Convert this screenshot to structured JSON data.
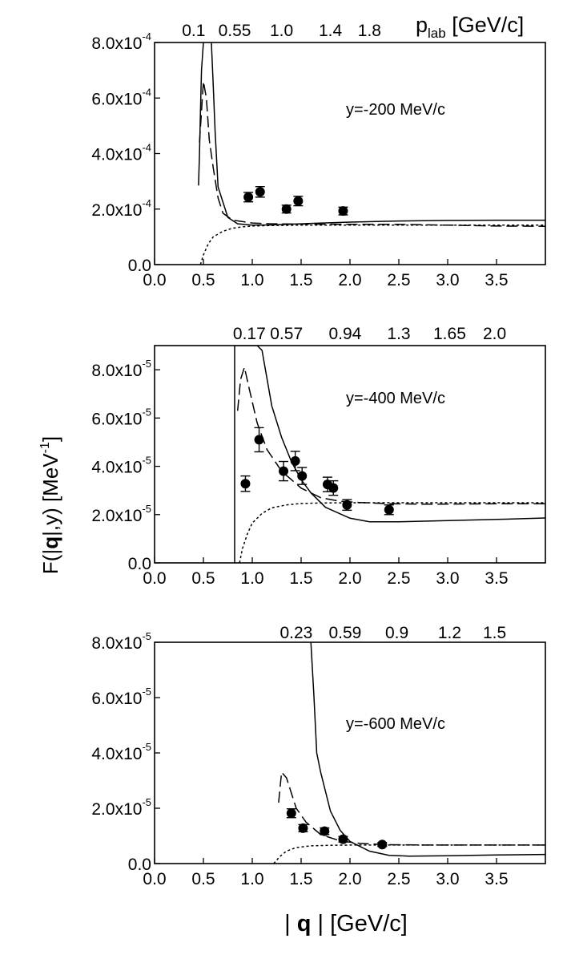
{
  "figure": {
    "ylabel_main": "F(|",
    "ylabel_bold": "q",
    "ylabel_rest": "|,y) [MeV",
    "ylabel_sup": "-1",
    "ylabel_close": "]",
    "xlabel_open": "| ",
    "xlabel_bold": "q",
    "xlabel_rest": " | [GeV/c]",
    "plab_label": "p",
    "plab_sub": "lab",
    "plab_units": " [GeV/c]"
  },
  "chart_data": [
    {
      "type": "line",
      "annotation": "y=-200 MeV/c",
      "xlim": [
        0.0,
        4.0
      ],
      "ylim": [
        0,
        0.0008
      ],
      "yexp": -4,
      "yticks": [
        0,
        0.0002,
        0.0004,
        0.0006,
        0.0008
      ],
      "ytick_labels": [
        {
          "m": "0.0",
          "e": ""
        },
        {
          "m": "2.0x10",
          "e": "-4"
        },
        {
          "m": "4.0x10",
          "e": "-4"
        },
        {
          "m": "6.0x10",
          "e": "-4"
        },
        {
          "m": "8.0x10",
          "e": "-4"
        }
      ],
      "xticks": [
        0.0,
        0.5,
        1.0,
        1.5,
        2.0,
        2.5,
        3.0,
        3.5
      ],
      "xtick_labels": [
        "0.0",
        "0.5",
        "1.0",
        "1.5",
        "2.0",
        "2.5",
        "3.0",
        "3.5"
      ],
      "top_ticks": [
        {
          "x": 0.4,
          "label": "0.1"
        },
        {
          "x": 0.82,
          "label": "0.55"
        },
        {
          "x": 1.3,
          "label": "1.0"
        },
        {
          "x": 1.8,
          "label": "1.4"
        },
        {
          "x": 2.2,
          "label": "1.8"
        }
      ],
      "points": [
        {
          "x": 0.96,
          "y": 0.000243,
          "err": 1.7e-05
        },
        {
          "x": 1.08,
          "y": 0.000262,
          "err": 1.9e-05
        },
        {
          "x": 1.35,
          "y": 0.0002,
          "err": 1.4e-05
        },
        {
          "x": 1.47,
          "y": 0.000229,
          "err": 1.7e-05
        },
        {
          "x": 1.93,
          "y": 0.000193,
          "err": 1.4e-05
        }
      ],
      "series": [
        {
          "name": "solid",
          "style": "solid",
          "x": [
            0.45,
            0.46,
            0.47,
            0.48,
            0.5,
            0.52,
            0.55,
            0.58,
            0.6,
            0.62,
            0.65,
            0.75,
            0.85,
            1.0,
            1.2,
            1.5,
            2.0,
            2.5,
            3.0,
            3.5,
            4.0
          ],
          "y": [
            0.000285,
            0.0004,
            0.00055,
            0.0007,
            0.0008,
            0.00082,
            0.00082,
            0.00081,
            0.00065,
            0.00048,
            0.00028,
            0.00017,
            0.000147,
            0.000142,
            0.000143,
            0.000147,
            0.000153,
            0.000157,
            0.000159,
            0.00016,
            0.00016
          ]
        },
        {
          "name": "dashed",
          "style": "dashed",
          "x": [
            0.46,
            0.5,
            0.53,
            0.56,
            0.6,
            0.65,
            0.7,
            0.8,
            1.0,
            1.2,
            1.5,
            2.0,
            2.5,
            3.0,
            3.5,
            4.0
          ],
          "y": [
            0.00044,
            0.00066,
            0.0006,
            0.00045,
            0.00035,
            0.00024,
            0.000185,
            0.00016,
            0.00015,
            0.000147,
            0.000146,
            0.000145,
            0.000145,
            0.000142,
            0.000139,
            0.000138
          ]
        },
        {
          "name": "dotted",
          "style": "dotted",
          "x": [
            0.47,
            0.5,
            0.55,
            0.6,
            0.7,
            0.8,
            0.9,
            1.0,
            1.2,
            1.5,
            2.0,
            2.5,
            3.0,
            3.5,
            4.0
          ],
          "y": [
            0.0,
            3.5e-05,
            7.5e-05,
            0.0001,
            0.00012,
            0.000131,
            0.000136,
            0.000139,
            0.000141,
            0.000142,
            0.000142,
            0.000142,
            0.000142,
            0.000142,
            0.000142
          ]
        }
      ]
    },
    {
      "type": "line",
      "annotation": "y=-400 MeV/c",
      "xlim": [
        0.0,
        4.0
      ],
      "ylim": [
        0,
        9e-05
      ],
      "yexp": -5,
      "yticks": [
        0,
        2e-05,
        4e-05,
        6e-05,
        8e-05
      ],
      "ytick_labels": [
        {
          "m": "0.0",
          "e": ""
        },
        {
          "m": "2.0x10",
          "e": "-5"
        },
        {
          "m": "4.0x10",
          "e": "-5"
        },
        {
          "m": "6.0x10",
          "e": "-5"
        },
        {
          "m": "8.0x10",
          "e": "-5"
        }
      ],
      "xticks": [
        0.0,
        0.5,
        1.0,
        1.5,
        2.0,
        2.5,
        3.0,
        3.5
      ],
      "xtick_labels": [
        "0.0",
        "0.5",
        "1.0",
        "1.5",
        "2.0",
        "2.5",
        "3.0",
        "3.5"
      ],
      "top_ticks": [
        {
          "x": 0.97,
          "label": "0.17"
        },
        {
          "x": 1.35,
          "label": "0.57"
        },
        {
          "x": 1.95,
          "label": "0.94"
        },
        {
          "x": 2.5,
          "label": "1.3"
        },
        {
          "x": 3.02,
          "label": "1.65"
        },
        {
          "x": 3.48,
          "label": "2.0"
        }
      ],
      "points": [
        {
          "x": 0.93,
          "y": 3.28e-05,
          "err": 3.2e-06
        },
        {
          "x": 1.07,
          "y": 5.1e-05,
          "err": 5e-06
        },
        {
          "x": 1.32,
          "y": 3.8e-05,
          "err": 4e-06
        },
        {
          "x": 1.44,
          "y": 4.22e-05,
          "err": 4e-06
        },
        {
          "x": 1.51,
          "y": 3.6e-05,
          "err": 3.5e-06
        },
        {
          "x": 1.77,
          "y": 3.25e-05,
          "err": 3e-06
        },
        {
          "x": 1.83,
          "y": 3.1e-05,
          "err": 3e-06
        },
        {
          "x": 1.97,
          "y": 2.4e-05,
          "err": 2.2e-06
        },
        {
          "x": 2.4,
          "y": 2.2e-05,
          "err": 2e-06
        }
      ],
      "series": [
        {
          "name": "solid",
          "style": "solid",
          "x": [
            0.82,
            0.82,
            0.83,
            0.85,
            0.9,
            1.0,
            1.05,
            1.1,
            1.2,
            1.3,
            1.4,
            1.5,
            1.6,
            1.75,
            2.0,
            2.2,
            2.5,
            3.0,
            3.5,
            4.0
          ],
          "y": [
            0.0,
            9e-05,
            9e-05,
            9e-05,
            9e-05,
            9e-05,
            9e-05,
            8.8e-05,
            6.5e-05,
            5.2e-05,
            4.2e-05,
            3.45e-05,
            2.9e-05,
            2.3e-05,
            1.85e-05,
            1.7e-05,
            1.7e-05,
            1.75e-05,
            1.8e-05,
            1.86e-05
          ]
        },
        {
          "name": "dashed",
          "style": "dashed",
          "x": [
            0.85,
            0.88,
            0.92,
            0.97,
            1.05,
            1.15,
            1.3,
            1.5,
            1.7,
            1.9,
            2.1,
            2.4,
            2.8,
            3.2,
            3.6,
            4.0
          ],
          "y": [
            6.3e-05,
            7.6e-05,
            8.1e-05,
            7.2e-05,
            5.8e-05,
            4.7e-05,
            3.8e-05,
            3.1e-05,
            2.7e-05,
            2.55e-05,
            2.5e-05,
            2.45e-05,
            2.43e-05,
            2.44e-05,
            2.45e-05,
            2.45e-05
          ]
        },
        {
          "name": "dotted",
          "style": "dotted",
          "x": [
            0.87,
            0.9,
            0.95,
            1.0,
            1.1,
            1.2,
            1.35,
            1.5,
            1.7,
            2.0,
            2.5,
            3.0,
            3.5,
            4.0
          ],
          "y": [
            0.0,
            6e-06,
            1.2e-05,
            1.65e-05,
            2.05e-05,
            2.28e-05,
            2.4e-05,
            2.46e-05,
            2.48e-05,
            2.49e-05,
            2.49e-05,
            2.49e-05,
            2.49e-05,
            2.49e-05
          ]
        }
      ]
    },
    {
      "type": "line",
      "annotation": "y=-600 MeV/c",
      "xlim": [
        0.0,
        4.0
      ],
      "ylim": [
        0,
        8e-05
      ],
      "yexp": -5,
      "yticks": [
        0,
        2e-05,
        4e-05,
        6e-05,
        8e-05
      ],
      "ytick_labels": [
        {
          "m": "0.0",
          "e": ""
        },
        {
          "m": "2.0x10",
          "e": "-5"
        },
        {
          "m": "4.0x10",
          "e": "-5"
        },
        {
          "m": "6.0x10",
          "e": "-5"
        },
        {
          "m": "8.0x10",
          "e": "-5"
        }
      ],
      "xticks": [
        0.0,
        0.5,
        1.0,
        1.5,
        2.0,
        2.5,
        3.0,
        3.5
      ],
      "xtick_labels": [
        "0.0",
        "0.5",
        "1.0",
        "1.5",
        "2.0",
        "2.5",
        "3.0",
        "3.5"
      ],
      "top_ticks": [
        {
          "x": 1.45,
          "label": "0.23"
        },
        {
          "x": 1.95,
          "label": "0.59"
        },
        {
          "x": 2.48,
          "label": "0.9"
        },
        {
          "x": 3.02,
          "label": "1.2"
        },
        {
          "x": 3.48,
          "label": "1.5"
        }
      ],
      "points": [
        {
          "x": 1.4,
          "y": 1.82e-05,
          "err": 1.6e-06
        },
        {
          "x": 1.52,
          "y": 1.28e-05,
          "err": 1.3e-06
        },
        {
          "x": 1.74,
          "y": 1.17e-05,
          "err": 1.2e-06
        },
        {
          "x": 1.93,
          "y": 8.8e-06,
          "err": 1e-06
        },
        {
          "x": 2.33,
          "y": 6.9e-06,
          "err": 7e-07
        }
      ],
      "series": [
        {
          "name": "solid",
          "style": "solid",
          "x": [
            1.6,
            1.63,
            1.66,
            1.7,
            1.75,
            1.8,
            1.9,
            2.0,
            2.2,
            2.4,
            2.6,
            3.0,
            3.5,
            4.0
          ],
          "y": [
            8e-05,
            6.1e-05,
            4e-05,
            3.3e-05,
            2.6e-05,
            1.9e-05,
            1.2e-05,
            8e-06,
            4.5e-06,
            3e-06,
            2.7e-06,
            2.8e-06,
            3.1e-06,
            3.3e-06
          ]
        },
        {
          "name": "dashed",
          "style": "dashed",
          "x": [
            1.27,
            1.3,
            1.35,
            1.45,
            1.55,
            1.7,
            1.9,
            2.1,
            2.4,
            2.8,
            3.2,
            3.6,
            4.0
          ],
          "y": [
            2.2e-05,
            3.3e-05,
            3.1e-05,
            2e-05,
            1.5e-05,
            1.05e-05,
            8.2e-06,
            7.3e-06,
            6.8e-06,
            6.7e-06,
            6.7e-06,
            6.7e-06,
            6.7e-06
          ]
        },
        {
          "name": "dotted",
          "style": "dotted",
          "x": [
            1.22,
            1.28,
            1.35,
            1.45,
            1.6,
            1.8,
            2.0,
            2.3,
            2.8,
            3.3,
            4.0
          ],
          "y": [
            0.0,
            2.5e-06,
            4.5e-06,
            5.8e-06,
            6.4e-06,
            6.6e-06,
            6.7e-06,
            6.7e-06,
            6.7e-06,
            6.7e-06,
            6.7e-06
          ]
        }
      ]
    }
  ]
}
